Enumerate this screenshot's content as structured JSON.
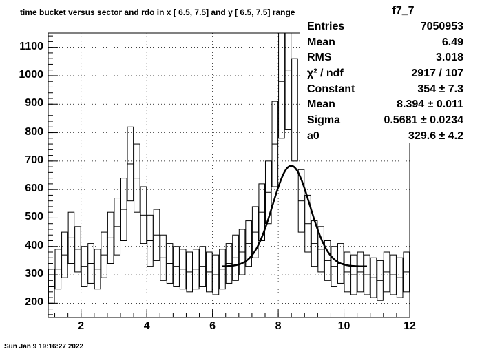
{
  "title": "time bucket versus sector and rdo in x [  6.5,  7.5] and y [  6.5,  7.5] range",
  "stats": {
    "name": "f7_7",
    "rows": [
      {
        "key": "Entries",
        "value": "7050953"
      },
      {
        "key": "Mean",
        "value": "6.49"
      },
      {
        "key": "RMS",
        "value": "3.018"
      },
      {
        "key": "χ² / ndf",
        "value": "2917 / 107"
      },
      {
        "key": "Constant",
        "value": "354 ± 7.3"
      },
      {
        "key": "Mean",
        "value": "8.394 ± 0.011"
      },
      {
        "key": "Sigma",
        "value": "0.5681 ± 0.0234"
      },
      {
        "key": "a0",
        "value": "329.6 ± 4.2"
      }
    ]
  },
  "datestamp": "Sun Jan  9 19:16:27 2022",
  "chart_data": {
    "type": "line",
    "xlim": [
      1.0,
      12.0
    ],
    "ylim": [
      150,
      1150
    ],
    "xticks": [
      2,
      4,
      6,
      8,
      10,
      12
    ],
    "yticks": [
      200,
      300,
      400,
      500,
      600,
      700,
      800,
      900,
      1000,
      1100
    ],
    "grid": true,
    "histogram": {
      "x": [
        1.1,
        1.3,
        1.5,
        1.7,
        1.9,
        2.1,
        2.3,
        2.5,
        2.7,
        2.9,
        3.1,
        3.3,
        3.5,
        3.7,
        3.9,
        4.1,
        4.3,
        4.5,
        4.7,
        4.9,
        5.1,
        5.3,
        5.5,
        5.7,
        5.9,
        6.1,
        6.3,
        6.5,
        6.7,
        6.9,
        7.1,
        7.3,
        7.5,
        7.7,
        7.9,
        8.1,
        8.3,
        8.5,
        8.7,
        8.9,
        9.1,
        9.3,
        9.5,
        9.7,
        9.9,
        10.1,
        10.3,
        10.5,
        10.7,
        10.9,
        11.1,
        11.3,
        11.5,
        11.7,
        11.9
      ],
      "y": [
        260,
        320,
        370,
        430,
        390,
        330,
        340,
        320,
        370,
        430,
        470,
        530,
        690,
        640,
        510,
        420,
        440,
        360,
        340,
        330,
        320,
        310,
        320,
        330,
        310,
        300,
        320,
        340,
        360,
        380,
        410,
        450,
        520,
        590,
        760,
        980,
        1020,
        880,
        560,
        480,
        410,
        390,
        350,
        330,
        340,
        310,
        300,
        310,
        300,
        290,
        280,
        310,
        300,
        290,
        310
      ],
      "err": [
        60,
        70,
        80,
        90,
        80,
        70,
        70,
        70,
        80,
        90,
        100,
        110,
        130,
        120,
        100,
        90,
        90,
        80,
        70,
        70,
        70,
        70,
        70,
        70,
        70,
        70,
        70,
        70,
        80,
        80,
        80,
        90,
        100,
        110,
        150,
        200,
        210,
        180,
        110,
        100,
        80,
        80,
        70,
        70,
        70,
        70,
        70,
        70,
        70,
        70,
        70,
        70,
        70,
        70,
        70
      ]
    },
    "fit": {
      "function": "gaussian + constant",
      "constant": 354,
      "mean": 8.394,
      "sigma": 0.5681,
      "a0": 329.6,
      "x_range": [
        6.3,
        10.7
      ]
    }
  }
}
